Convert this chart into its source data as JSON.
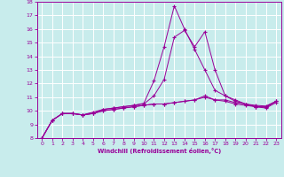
{
  "xlabel": "Windchill (Refroidissement éolien,°C)",
  "bg_color": "#c8ecec",
  "line_color": "#990099",
  "grid_color": "#ffffff",
  "xlim": [
    -0.5,
    23.5
  ],
  "ylim": [
    8,
    18
  ],
  "xticks": [
    0,
    1,
    2,
    3,
    4,
    5,
    6,
    7,
    8,
    9,
    10,
    11,
    12,
    13,
    14,
    15,
    16,
    17,
    18,
    19,
    20,
    21,
    22,
    23
  ],
  "yticks": [
    8,
    9,
    10,
    11,
    12,
    13,
    14,
    15,
    16,
    17,
    18
  ],
  "line1": [
    8.0,
    9.3,
    9.8,
    9.8,
    9.7,
    9.8,
    10.0,
    10.1,
    10.2,
    10.3,
    10.4,
    10.5,
    10.5,
    10.6,
    10.7,
    10.8,
    11.1,
    10.8,
    10.8,
    10.6,
    10.5,
    10.4,
    10.35,
    10.7
  ],
  "line2": [
    8.0,
    9.3,
    9.8,
    9.8,
    9.7,
    9.8,
    10.1,
    10.2,
    10.3,
    10.4,
    10.55,
    12.2,
    14.7,
    17.7,
    16.0,
    14.5,
    13.0,
    11.5,
    11.1,
    10.7,
    10.5,
    10.3,
    10.25,
    10.7
  ],
  "line3": [
    8.0,
    9.3,
    9.8,
    9.8,
    9.7,
    9.9,
    10.1,
    10.2,
    10.3,
    10.4,
    10.5,
    11.1,
    12.3,
    15.4,
    15.9,
    14.7,
    15.8,
    13.0,
    11.1,
    10.8,
    10.5,
    10.3,
    10.3,
    10.7
  ],
  "line4": [
    8.0,
    9.3,
    9.8,
    9.8,
    9.7,
    9.8,
    10.0,
    10.1,
    10.2,
    10.3,
    10.4,
    10.5,
    10.5,
    10.6,
    10.7,
    10.8,
    11.0,
    10.8,
    10.7,
    10.5,
    10.4,
    10.3,
    10.2,
    10.6
  ]
}
